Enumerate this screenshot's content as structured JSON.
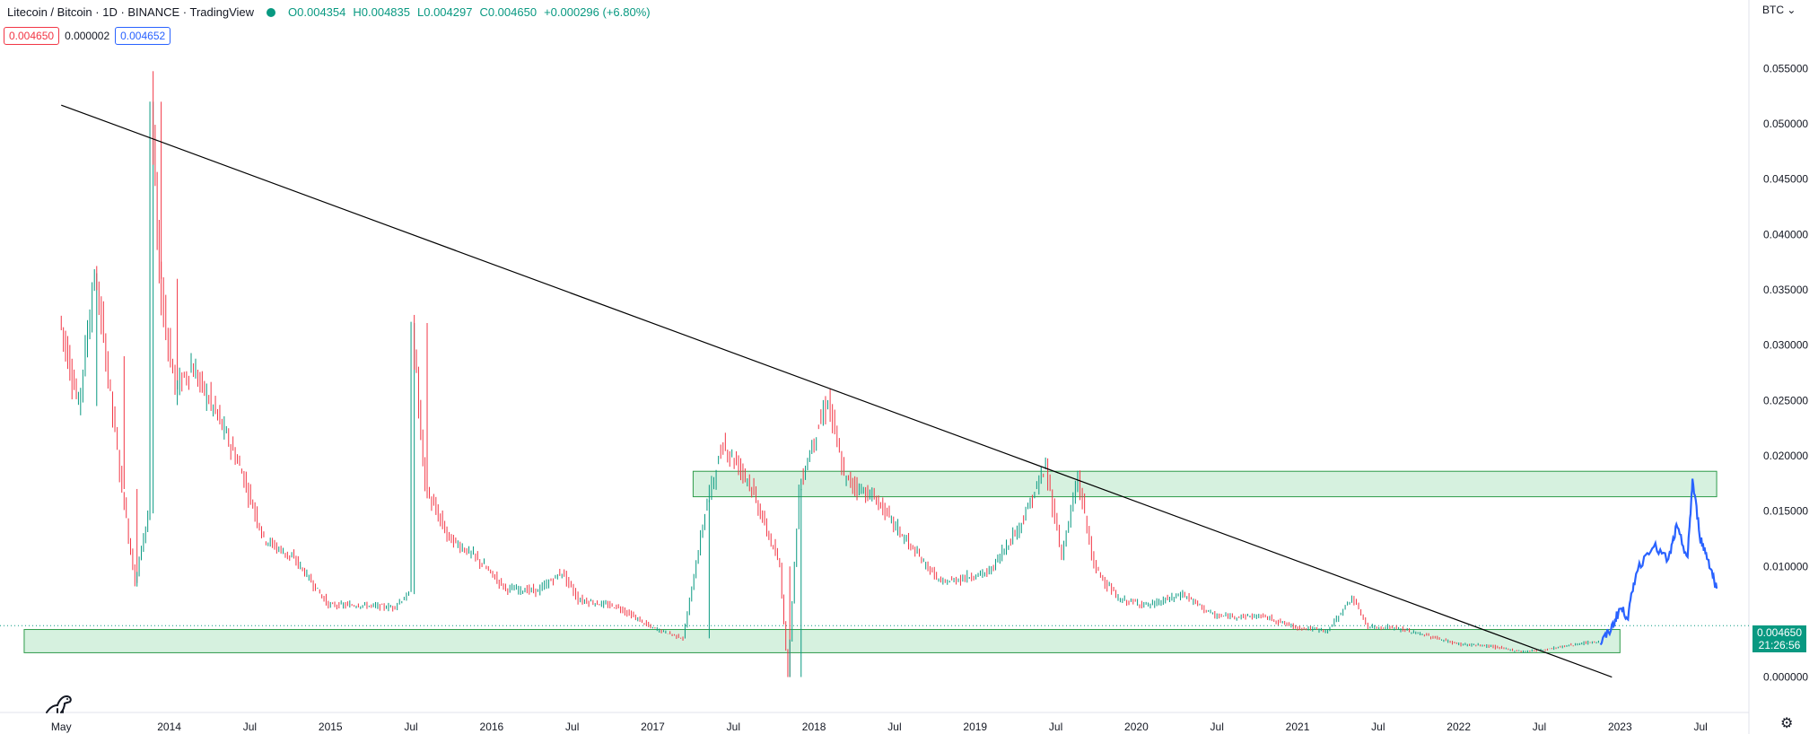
{
  "header": {
    "symbol": "Litecoin / Bitcoin · 1D · BINANCE · TradingView",
    "ohlc": {
      "o": "O0.004354",
      "h": "H0.004835",
      "l": "L0.004297",
      "c": "C0.004650",
      "chg": "+0.000296 (+6.80%)"
    },
    "chips": {
      "bid": "0.004650",
      "spread": "0.000002",
      "ask": "0.004652"
    }
  },
  "price_axis": {
    "currency": "BTC",
    "last_price": "0.004650",
    "countdown": "21:26:56"
  },
  "icons": {
    "logo": "dinosaur-icon",
    "settings": "gear-icon",
    "live": "live-dot-icon"
  },
  "colors": {
    "up": "#089981",
    "down": "#f23645",
    "projection": "#2962ff",
    "zone_fill": "#c8ecd4",
    "zone_border": "#2e9b4a",
    "trendline": "#000000"
  },
  "chart_data": {
    "type": "line",
    "series": [
      {
        "values": [
          [
            2013.33,
            0.0325
          ],
          [
            2013.45,
            0.0245
          ],
          [
            2013.55,
            0.0365
          ],
          [
            2013.62,
            0.029
          ],
          [
            2013.72,
            0.017
          ],
          [
            2013.8,
            0.0085
          ],
          [
            2013.88,
            0.0148
          ],
          [
            2013.9,
            0.052
          ],
          [
            2013.95,
            0.036
          ],
          [
            2014.05,
            0.026
          ],
          [
            2014.15,
            0.028
          ],
          [
            2014.3,
            0.024
          ],
          [
            2014.45,
            0.019
          ],
          [
            2014.6,
            0.0125
          ],
          [
            2014.8,
            0.0105
          ],
          [
            2015.0,
            0.0065
          ],
          [
            2015.2,
            0.0065
          ],
          [
            2015.4,
            0.0063
          ],
          [
            2015.5,
            0.0075
          ],
          [
            2015.52,
            0.032
          ],
          [
            2015.6,
            0.017
          ],
          [
            2015.75,
            0.0125
          ],
          [
            2015.9,
            0.011
          ],
          [
            2016.1,
            0.008
          ],
          [
            2016.3,
            0.0078
          ],
          [
            2016.45,
            0.0095
          ],
          [
            2016.55,
            0.007
          ],
          [
            2016.8,
            0.0063
          ],
          [
            2017.0,
            0.0045
          ],
          [
            2017.2,
            0.0035
          ],
          [
            2017.35,
            0.016
          ],
          [
            2017.45,
            0.021
          ],
          [
            2017.6,
            0.018
          ],
          [
            2017.8,
            0.01
          ],
          [
            2017.85,
            0.0
          ],
          [
            2017.92,
            0.017
          ],
          [
            2018.0,
            0.021
          ],
          [
            2018.1,
            0.025
          ],
          [
            2018.2,
            0.018
          ],
          [
            2018.4,
            0.016
          ],
          [
            2018.6,
            0.012
          ],
          [
            2018.8,
            0.0085
          ],
          [
            2019.1,
            0.0095
          ],
          [
            2019.3,
            0.014
          ],
          [
            2019.45,
            0.019
          ],
          [
            2019.55,
            0.011
          ],
          [
            2019.65,
            0.018
          ],
          [
            2019.75,
            0.01
          ],
          [
            2019.9,
            0.007
          ],
          [
            2020.1,
            0.0065
          ],
          [
            2020.3,
            0.0075
          ],
          [
            2020.5,
            0.0055
          ],
          [
            2020.8,
            0.0055
          ],
          [
            2021.0,
            0.0045
          ],
          [
            2021.2,
            0.0042
          ],
          [
            2021.35,
            0.0072
          ],
          [
            2021.45,
            0.0045
          ],
          [
            2021.6,
            0.0045
          ],
          [
            2021.8,
            0.0038
          ],
          [
            2022.0,
            0.003
          ],
          [
            2022.2,
            0.0028
          ],
          [
            2022.4,
            0.0023
          ],
          [
            2022.55,
            0.0025
          ],
          [
            2022.75,
            0.003
          ],
          [
            2022.88,
            0.0032
          ]
        ]
      },
      {
        "values": [
          [
            2022.88,
            0.003
          ],
          [
            2022.95,
            0.0045
          ],
          [
            2023.0,
            0.0062
          ],
          [
            2023.05,
            0.0055
          ],
          [
            2023.1,
            0.0095
          ],
          [
            2023.2,
            0.012
          ],
          [
            2023.3,
            0.0105
          ],
          [
            2023.35,
            0.0135
          ],
          [
            2023.42,
            0.0108
          ],
          [
            2023.45,
            0.0178
          ],
          [
            2023.5,
            0.0125
          ],
          [
            2023.55,
            0.0105
          ],
          [
            2023.6,
            0.008
          ]
        ]
      }
    ],
    "trendlines": [
      {
        "from": [
          2013.33,
          0.0517
        ],
        "to": [
          2022.95,
          0.0
        ]
      }
    ],
    "zones": [
      {
        "x": [
          2017.25,
          2023.6
        ],
        "y": [
          0.0163,
          0.0186
        ]
      },
      {
        "x": [
          2013.1,
          2023.0
        ],
        "y": [
          0.0022,
          0.0043
        ]
      }
    ],
    "x_ticks": [
      {
        "x": 2013.33,
        "label": "May"
      },
      {
        "x": 2014.0,
        "label": "2014"
      },
      {
        "x": 2014.5,
        "label": "Jul"
      },
      {
        "x": 2015.0,
        "label": "2015"
      },
      {
        "x": 2015.5,
        "label": "Jul"
      },
      {
        "x": 2016.0,
        "label": "2016"
      },
      {
        "x": 2016.5,
        "label": "Jul"
      },
      {
        "x": 2017.0,
        "label": "2017"
      },
      {
        "x": 2017.5,
        "label": "Jul"
      },
      {
        "x": 2018.0,
        "label": "2018"
      },
      {
        "x": 2018.5,
        "label": "Jul"
      },
      {
        "x": 2019.0,
        "label": "2019"
      },
      {
        "x": 2019.5,
        "label": "Jul"
      },
      {
        "x": 2020.0,
        "label": "2020"
      },
      {
        "x": 2020.5,
        "label": "Jul"
      },
      {
        "x": 2021.0,
        "label": "2021"
      },
      {
        "x": 2021.5,
        "label": "Jul"
      },
      {
        "x": 2022.0,
        "label": "2022"
      },
      {
        "x": 2022.5,
        "label": "Jul"
      },
      {
        "x": 2023.0,
        "label": "2023"
      },
      {
        "x": 2023.5,
        "label": "Jul"
      }
    ],
    "y_ticks": [
      {
        "y": 0.055,
        "label": "0.055000"
      },
      {
        "y": 0.05,
        "label": "0.050000"
      },
      {
        "y": 0.045,
        "label": "0.045000"
      },
      {
        "y": 0.04,
        "label": "0.040000"
      },
      {
        "y": 0.035,
        "label": "0.035000"
      },
      {
        "y": 0.03,
        "label": "0.030000"
      },
      {
        "y": 0.025,
        "label": "0.025000"
      },
      {
        "y": 0.02,
        "label": "0.020000"
      },
      {
        "y": 0.015,
        "label": "0.015000"
      },
      {
        "y": 0.01,
        "label": "0.010000"
      },
      {
        "y": 0.0,
        "label": "0.000000"
      }
    ],
    "last_price": 0.00465,
    "xlim": [
      2012.95,
      2023.8
    ],
    "ylim": [
      -0.0032,
      0.0612
    ],
    "grid": false
  }
}
